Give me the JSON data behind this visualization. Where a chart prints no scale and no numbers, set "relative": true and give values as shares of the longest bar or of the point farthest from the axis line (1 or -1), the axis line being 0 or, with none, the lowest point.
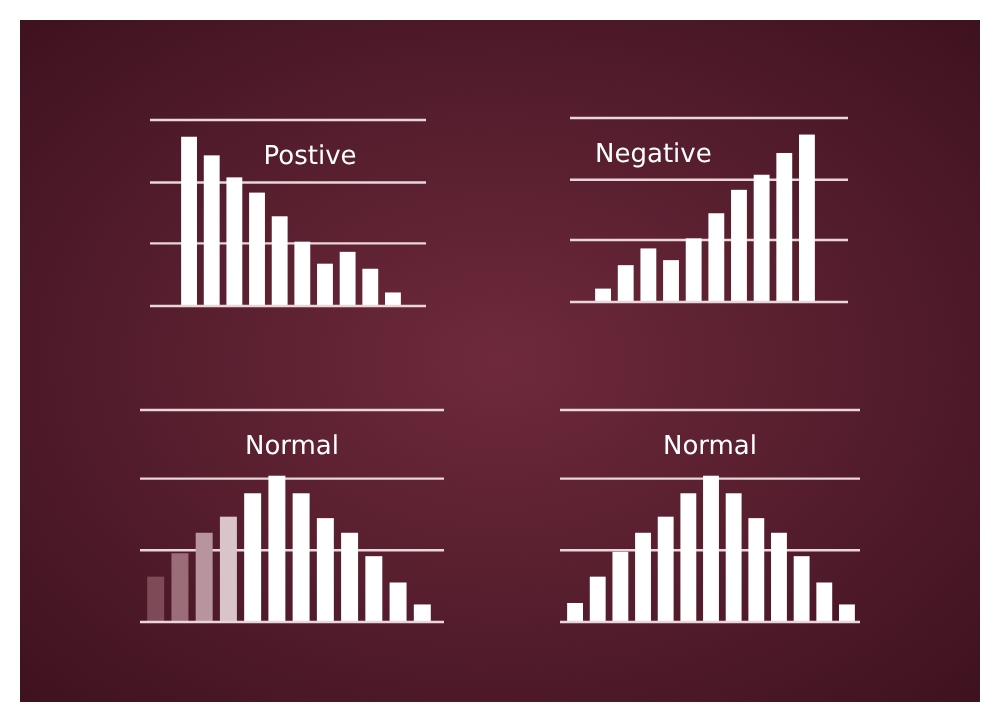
{
  "chart_data": [
    {
      "type": "bar",
      "title": "Postive",
      "relative": true,
      "ref_lines": [
        {
          "axis": "y",
          "value": 0.37
        },
        {
          "axis": "y",
          "value": 0.73
        }
      ],
      "categories": [
        null,
        null,
        null,
        null,
        null,
        null,
        null,
        null,
        null,
        null
      ],
      "values": [
        1,
        0.89,
        0.76,
        0.67,
        0.53,
        0.38,
        0.25,
        0.32,
        0.22,
        0.08
      ],
      "color": "#ffffff"
    },
    {
      "type": "bar",
      "title": "Negative",
      "relative": true,
      "ref_lines": [
        {
          "axis": "y",
          "value": 0.37
        },
        {
          "axis": "y",
          "value": 0.73
        }
      ],
      "categories": [
        null,
        null,
        null,
        null,
        null,
        null,
        null,
        null,
        null,
        null
      ],
      "values": [
        0.08,
        0.22,
        0.32,
        0.25,
        0.38,
        0.53,
        0.67,
        0.76,
        0.89,
        1
      ],
      "color": "#ffffff"
    },
    {
      "type": "bar",
      "title": "Normal",
      "relative": true,
      "ref_lines": [
        {
          "axis": "y",
          "value": 0.49
        },
        {
          "axis": "y",
          "value": 0.98
        }
      ],
      "categories": [
        null,
        null,
        null,
        null,
        null,
        null,
        null,
        null,
        null,
        null,
        null,
        null
      ],
      "values": [
        0.31,
        0.47,
        0.61,
        0.72,
        0.88,
        1,
        0.88,
        0.71,
        0.61,
        0.45,
        0.27,
        0.12
      ],
      "colors": [
        "#7e4a57",
        "#9a6d78",
        "#b8959e",
        "#d8c4c9",
        "#ffffff",
        "#ffffff",
        "#ffffff",
        "#ffffff",
        "#ffffff",
        "#ffffff",
        "#ffffff",
        "#ffffff"
      ]
    },
    {
      "type": "bar",
      "title": "Normal",
      "relative": true,
      "ref_lines": [
        {
          "axis": "y",
          "value": 0.49
        },
        {
          "axis": "y",
          "value": 0.98
        }
      ],
      "categories": [
        null,
        null,
        null,
        null,
        null,
        null,
        null,
        null,
        null,
        null,
        null,
        null,
        null
      ],
      "values": [
        0.13,
        0.31,
        0.48,
        0.61,
        0.72,
        0.88,
        1,
        0.88,
        0.71,
        0.61,
        0.45,
        0.27,
        0.12
      ],
      "color": "#ffffff"
    }
  ]
}
